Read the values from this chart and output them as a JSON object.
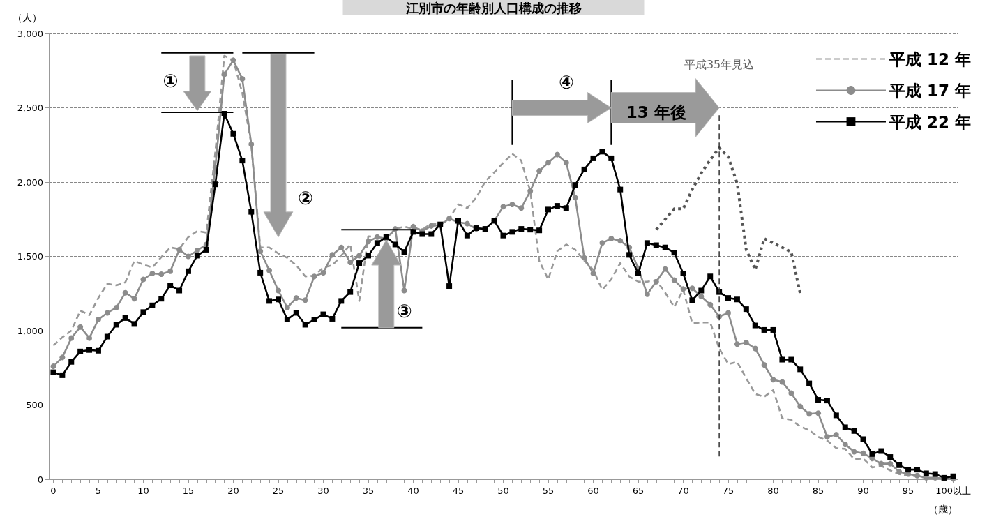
{
  "chart_data": {
    "type": "line",
    "title": "江別市の年齢別人口構成の推移",
    "xlabel": "（歳）",
    "ylabel": "（人）",
    "categories": [
      "0",
      null,
      null,
      null,
      null,
      "5",
      null,
      null,
      null,
      null,
      "10",
      null,
      null,
      null,
      null,
      "15",
      null,
      null,
      null,
      null,
      "20",
      null,
      null,
      null,
      null,
      "25",
      null,
      null,
      null,
      null,
      "30",
      null,
      null,
      null,
      null,
      "35",
      null,
      null,
      null,
      null,
      "40",
      null,
      null,
      null,
      null,
      "45",
      null,
      null,
      null,
      null,
      "50",
      null,
      null,
      null,
      null,
      "55",
      null,
      null,
      null,
      null,
      "60",
      null,
      null,
      null,
      null,
      "65",
      null,
      null,
      null,
      null,
      "70",
      null,
      null,
      null,
      null,
      "75",
      null,
      null,
      null,
      null,
      "80",
      null,
      null,
      null,
      null,
      "85",
      null,
      null,
      null,
      null,
      "90",
      null,
      null,
      null,
      null,
      "95",
      null,
      null,
      null,
      null,
      "100以上"
    ],
    "series": [
      {
        "name": "平成 12 年",
        "color": "#999999",
        "marker": "none",
        "line_style": "dashed",
        "values": [
          900,
          955,
          1000,
          1135,
          1105,
          1220,
          1315,
          1305,
          1325,
          1470,
          1445,
          1425,
          1495,
          1560,
          1550,
          1630,
          1670,
          1660,
          2200,
          2850,
          2820,
          2600,
          2255,
          1560,
          1560,
          1520,
          1490,
          1440,
          1365,
          1370,
          1425,
          1440,
          1505,
          1580,
          1200,
          1635,
          1630,
          1615,
          1685,
          1700,
          1685,
          1680,
          1720,
          1715,
          1755,
          1850,
          1825,
          1895,
          2005,
          2065,
          2130,
          2190,
          2145,
          1940,
          1470,
          1345,
          1535,
          1580,
          1545,
          1470,
          1410,
          1275,
          1345,
          1455,
          1365,
          1330,
          1330,
          1340,
          1255,
          1160,
          1275,
          1050,
          1055,
          1055,
          880,
          775,
          790,
          680,
          575,
          555,
          600,
          410,
          400,
          355,
          330,
          285,
          260,
          210,
          205,
          135,
          140,
          80,
          90,
          60,
          35,
          25,
          20,
          10,
          5,
          3,
          null
        ]
      },
      {
        "name": "平成 17 年",
        "color": "#8c8c8c",
        "marker": "circle",
        "line_style": "solid",
        "values": [
          760,
          820,
          950,
          1025,
          950,
          1075,
          1120,
          1155,
          1255,
          1215,
          1345,
          1385,
          1380,
          1400,
          1545,
          1500,
          1540,
          1580,
          2100,
          2725,
          2820,
          2695,
          2255,
          1535,
          1405,
          1270,
          1155,
          1220,
          1205,
          1365,
          1390,
          1510,
          1560,
          1460,
          1505,
          1600,
          1630,
          1620,
          1685,
          1270,
          1700,
          1670,
          1705,
          1710,
          1755,
          1730,
          1720,
          1685,
          1685,
          1740,
          1835,
          1850,
          1825,
          1940,
          2075,
          2130,
          2185,
          2130,
          1895,
          1490,
          1385,
          1590,
          1620,
          1605,
          1560,
          1420,
          1245,
          1330,
          1415,
          1340,
          1280,
          1285,
          1230,
          1175,
          1095,
          1120,
          910,
          920,
          880,
          770,
          670,
          655,
          580,
          490,
          440,
          445,
          285,
          300,
          235,
          185,
          175,
          140,
          105,
          105,
          50,
          35,
          25,
          10,
          10,
          5,
          3
        ]
      },
      {
        "name": "平成 22 年",
        "color": "#000000",
        "marker": "square",
        "line_style": "solid",
        "values": [
          720,
          700,
          790,
          860,
          870,
          865,
          960,
          1040,
          1085,
          1045,
          1125,
          1170,
          1215,
          1305,
          1270,
          1400,
          1505,
          1545,
          1985,
          2460,
          2325,
          2145,
          1800,
          1390,
          1200,
          1210,
          1075,
          1120,
          1040,
          1075,
          1110,
          1080,
          1200,
          1260,
          1455,
          1505,
          1590,
          1630,
          1580,
          1530,
          1665,
          1650,
          1650,
          1715,
          1300,
          1740,
          1640,
          1690,
          1685,
          1740,
          1640,
          1665,
          1685,
          1680,
          1675,
          1815,
          1840,
          1825,
          1980,
          2085,
          2160,
          2205,
          2160,
          1950,
          1510,
          1385,
          1590,
          1575,
          1560,
          1525,
          1385,
          1205,
          1270,
          1365,
          1260,
          1220,
          1210,
          1145,
          1035,
          1005,
          1005,
          805,
          805,
          740,
          645,
          535,
          530,
          430,
          350,
          325,
          270,
          170,
          190,
          150,
          95,
          65,
          65,
          40,
          35,
          10,
          20
        ]
      },
      {
        "color": "#555555",
        "marker": "none",
        "line_style": "dotted",
        "values": [
          null,
          null,
          null,
          null,
          null,
          null,
          null,
          null,
          null,
          null,
          null,
          null,
          null,
          null,
          null,
          null,
          null,
          null,
          null,
          null,
          null,
          null,
          null,
          null,
          null,
          null,
          null,
          null,
          null,
          null,
          null,
          null,
          null,
          null,
          null,
          null,
          null,
          null,
          null,
          null,
          null,
          null,
          null,
          null,
          null,
          null,
          null,
          null,
          null,
          null,
          null,
          null,
          null,
          null,
          null,
          null,
          null,
          null,
          null,
          null,
          null,
          null,
          null,
          null,
          null,
          null,
          null,
          1680,
          1750,
          1820,
          1820,
          1950,
          2060,
          2150,
          2230,
          2170,
          1990,
          1545,
          1410,
          1620,
          1590,
          1560,
          1530,
          1250,
          null,
          null,
          null,
          null,
          null,
          null,
          null,
          null,
          null,
          null,
          null,
          null,
          null,
          null,
          null,
          null,
          null
        ]
      }
    ],
    "ylim": [
      0,
      3000
    ],
    "yticks": [
      0,
      500,
      {
        "value": 1000,
        "label": "1,000"
      },
      {
        "value": 1500,
        "label": "1,500"
      },
      {
        "value": 2000,
        "label": "2,000"
      },
      {
        "value": 2500,
        "label": "2,500"
      },
      {
        "value": 3000,
        "label": "3,000"
      }
    ],
    "grid": "y",
    "legend": "top right",
    "annotations": [
      "①",
      "②",
      "③",
      "④",
      "13 年後",
      "平成35年見込"
    ]
  }
}
